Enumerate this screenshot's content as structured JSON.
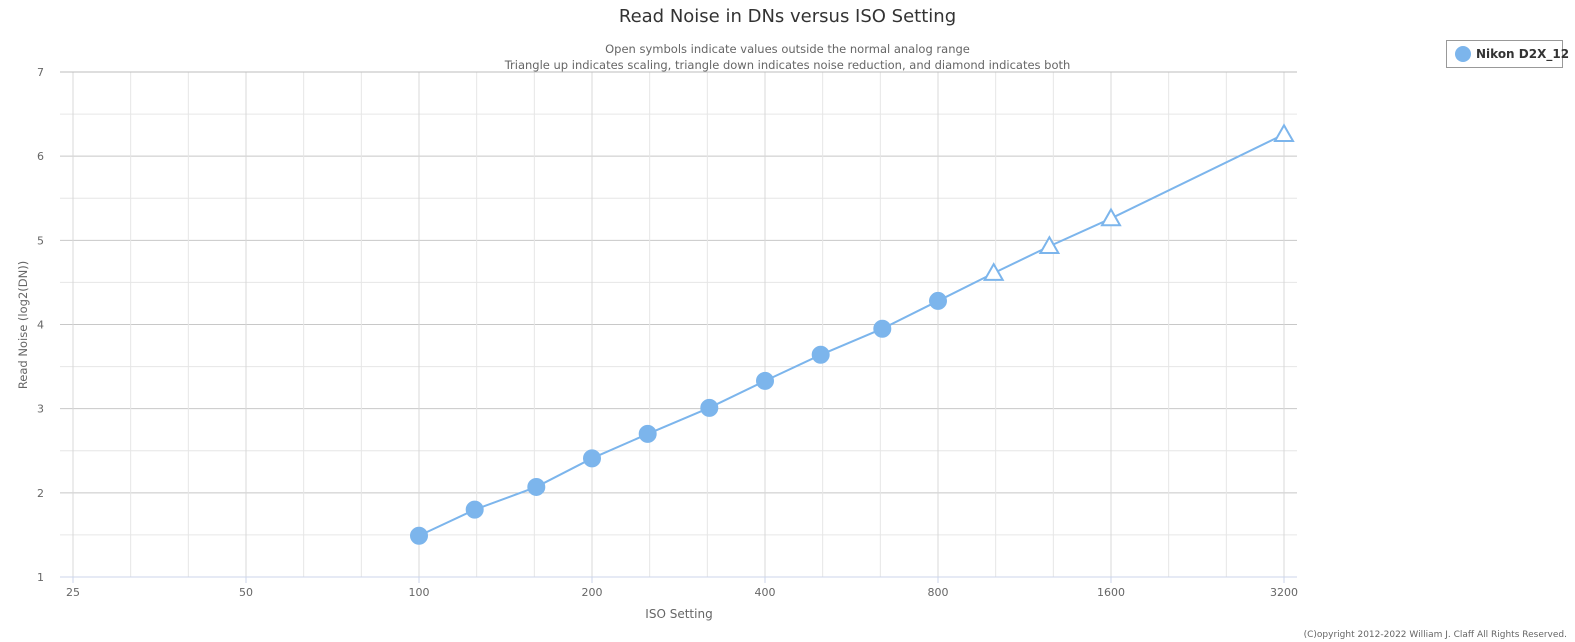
{
  "chart_data": {
    "type": "line",
    "title": "Read Noise in DNs versus ISO Setting",
    "subtitle_lines": [
      "Open symbols indicate values outside the normal analog range",
      "Triangle up indicates scaling, triangle down indicates noise reduction, and diamond indicates both"
    ],
    "xlabel": "ISO Setting",
    "ylabel": "Read Noise (log2(DN))",
    "x_scale": "log2",
    "xlim": [
      25,
      3200
    ],
    "ylim": [
      1,
      7
    ],
    "x_ticks": [
      25,
      50,
      100,
      200,
      400,
      800,
      1600,
      3200
    ],
    "y_ticks": [
      1,
      2,
      3,
      4,
      5,
      6,
      7
    ],
    "grid": true,
    "legend_position": "top-right",
    "series": [
      {
        "name": "Nikon D2X_12",
        "color": "#7cb5ec",
        "points": [
          {
            "x": 100,
            "y": 1.49,
            "marker": "circle"
          },
          {
            "x": 125,
            "y": 1.8,
            "marker": "circle"
          },
          {
            "x": 160,
            "y": 2.07,
            "marker": "circle"
          },
          {
            "x": 200,
            "y": 2.41,
            "marker": "circle"
          },
          {
            "x": 250,
            "y": 2.7,
            "marker": "circle"
          },
          {
            "x": 320,
            "y": 3.01,
            "marker": "circle"
          },
          {
            "x": 400,
            "y": 3.33,
            "marker": "circle"
          },
          {
            "x": 500,
            "y": 3.64,
            "marker": "circle"
          },
          {
            "x": 640,
            "y": 3.95,
            "marker": "circle"
          },
          {
            "x": 800,
            "y": 4.28,
            "marker": "circle"
          },
          {
            "x": 1000,
            "y": 4.61,
            "marker": "triangle-up-open"
          },
          {
            "x": 1250,
            "y": 4.93,
            "marker": "triangle-up-open"
          },
          {
            "x": 1600,
            "y": 5.26,
            "marker": "triangle-up-open"
          },
          {
            "x": 3200,
            "y": 6.26,
            "marker": "triangle-up-open"
          }
        ]
      }
    ]
  },
  "copyright": "(C)opyright 2012-2022 William J. Claff All Rights Reserved."
}
